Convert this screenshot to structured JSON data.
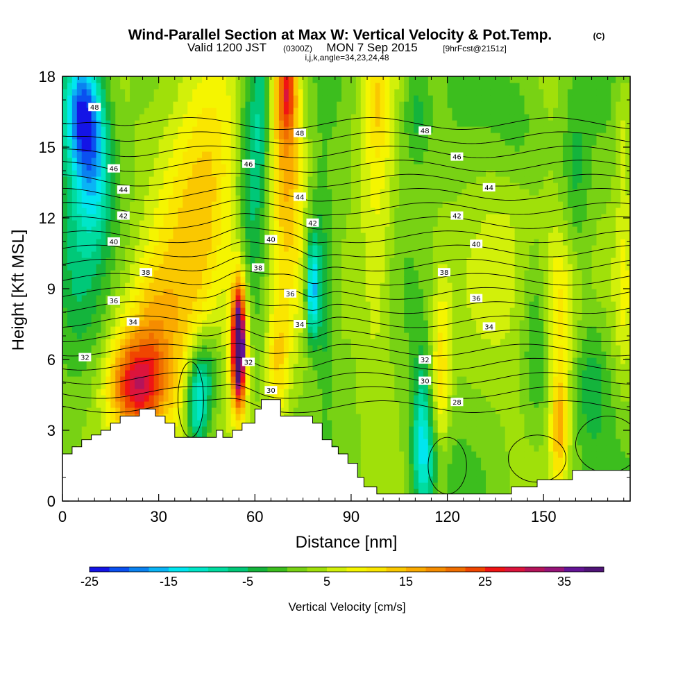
{
  "titles": {
    "main": "Wind-Parallel Section at Max W: Vertical Velocity & Pot.Temp.",
    "main_mark": "(C)",
    "valid_prefix": "Valid 1200 JST",
    "valid_utc": "(0300Z)",
    "valid_date": "MON 7 Sep 2015",
    "valid_fcst": "[9hrFcst@2151z]",
    "indices": "i,j,k,angle=34,23,24,48"
  },
  "chart_data": {
    "type": "heatmap",
    "xlabel": "Distance [nm]",
    "ylabel": "Height [Kft MSL]",
    "xlim": [
      0,
      177
    ],
    "ylim": [
      0,
      18
    ],
    "x_ticks": [
      0,
      30,
      60,
      90,
      120,
      150
    ],
    "y_ticks": [
      0,
      3,
      6,
      9,
      12,
      15,
      18
    ],
    "color_variable": "Vertical Velocity [cm/s]",
    "colorbar_range": [
      -25,
      40
    ],
    "colorbar_step": 2.5,
    "colorbar_tick_labels": [
      "-25",
      "-15",
      "-5",
      "5",
      "15",
      "25",
      "35"
    ],
    "colorbar_colors": [
      "#1414e6",
      "#0a50f0",
      "#0a82f0",
      "#0ab4f5",
      "#00e6f0",
      "#00e6c8",
      "#00dca0",
      "#00c878",
      "#14b43c",
      "#3cbe1e",
      "#78d214",
      "#a0e00a",
      "#d2f00a",
      "#f5f500",
      "#fae600",
      "#fac800",
      "#faaa00",
      "#f58c00",
      "#f06e00",
      "#f04600",
      "#f01414",
      "#dc143c",
      "#b4145a",
      "#961478",
      "#641496",
      "#501478"
    ],
    "terrain": [
      [
        0,
        2.0
      ],
      [
        3,
        2.0
      ],
      [
        3,
        2.3
      ],
      [
        6,
        2.3
      ],
      [
        6,
        2.6
      ],
      [
        9,
        2.6
      ],
      [
        9,
        2.8
      ],
      [
        12,
        2.8
      ],
      [
        12,
        3.0
      ],
      [
        15,
        3.0
      ],
      [
        15,
        3.3
      ],
      [
        18,
        3.3
      ],
      [
        18,
        3.6
      ],
      [
        24,
        3.6
      ],
      [
        24,
        3.9
      ],
      [
        29,
        3.9
      ],
      [
        29,
        3.6
      ],
      [
        32,
        3.6
      ],
      [
        32,
        3.3
      ],
      [
        35,
        3.3
      ],
      [
        35,
        2.7
      ],
      [
        48,
        2.7
      ],
      [
        48,
        3.0
      ],
      [
        50,
        3.0
      ],
      [
        50,
        2.7
      ],
      [
        53,
        2.7
      ],
      [
        53,
        3.0
      ],
      [
        56,
        3.0
      ],
      [
        56,
        3.3
      ],
      [
        60,
        3.3
      ],
      [
        60,
        3.9
      ],
      [
        62,
        3.9
      ],
      [
        62,
        4.3
      ],
      [
        68,
        4.3
      ],
      [
        68,
        3.6
      ],
      [
        78,
        3.6
      ],
      [
        78,
        3.3
      ],
      [
        81,
        3.3
      ],
      [
        81,
        2.6
      ],
      [
        84,
        2.6
      ],
      [
        84,
        2.3
      ],
      [
        86,
        2.3
      ],
      [
        86,
        2.0
      ],
      [
        89,
        2.0
      ],
      [
        89,
        1.6
      ],
      [
        92,
        1.6
      ],
      [
        92,
        1.0
      ],
      [
        94,
        1.0
      ],
      [
        94,
        0.6
      ],
      [
        98,
        0.6
      ],
      [
        98,
        0.3
      ],
      [
        140,
        0.3
      ],
      [
        140,
        0.6
      ],
      [
        148,
        0.6
      ],
      [
        148,
        0.9
      ],
      [
        159,
        0.9
      ],
      [
        159,
        1.3
      ],
      [
        177,
        1.3
      ]
    ],
    "theta_levels": [
      28,
      29,
      30,
      31,
      32,
      33,
      34,
      35,
      36,
      37,
      38,
      39,
      40,
      41,
      42,
      43,
      44,
      45,
      46,
      47,
      48
    ],
    "contour_labels": [
      {
        "text": "48",
        "x": 10,
        "y": 16.7
      },
      {
        "text": "48",
        "x": 74,
        "y": 15.6
      },
      {
        "text": "48",
        "x": 113,
        "y": 15.7
      },
      {
        "text": "46",
        "x": 16,
        "y": 14.1
      },
      {
        "text": "46",
        "x": 58,
        "y": 14.3
      },
      {
        "text": "46",
        "x": 123,
        "y": 14.6
      },
      {
        "text": "44",
        "x": 19,
        "y": 13.2
      },
      {
        "text": "44",
        "x": 74,
        "y": 12.9
      },
      {
        "text": "44",
        "x": 133,
        "y": 13.3
      },
      {
        "text": "42",
        "x": 19,
        "y": 12.1
      },
      {
        "text": "42",
        "x": 78,
        "y": 11.8
      },
      {
        "text": "42",
        "x": 123,
        "y": 12.1
      },
      {
        "text": "40",
        "x": 16,
        "y": 11.0
      },
      {
        "text": "40",
        "x": 65,
        "y": 11.1
      },
      {
        "text": "40",
        "x": 129,
        "y": 10.9
      },
      {
        "text": "38",
        "x": 26,
        "y": 9.7
      },
      {
        "text": "38",
        "x": 61,
        "y": 9.9
      },
      {
        "text": "38",
        "x": 119,
        "y": 9.7
      },
      {
        "text": "36",
        "x": 16,
        "y": 8.5
      },
      {
        "text": "36",
        "x": 71,
        "y": 8.8
      },
      {
        "text": "36",
        "x": 129,
        "y": 8.6
      },
      {
        "text": "34",
        "x": 22,
        "y": 7.6
      },
      {
        "text": "34",
        "x": 74,
        "y": 7.5
      },
      {
        "text": "34",
        "x": 133,
        "y": 7.4
      },
      {
        "text": "32",
        "x": 7,
        "y": 6.1
      },
      {
        "text": "32",
        "x": 58,
        "y": 5.9
      },
      {
        "text": "32",
        "x": 113,
        "y": 6.0
      },
      {
        "text": "30",
        "x": 65,
        "y": 4.7
      },
      {
        "text": "30",
        "x": 113,
        "y": 5.1
      },
      {
        "text": "28",
        "x": 123,
        "y": 4.2
      }
    ],
    "velocity_features": [
      {
        "x": 6,
        "y": 16.6,
        "w": -22,
        "sx": 4,
        "sy": 1.8
      },
      {
        "x": 10,
        "y": 14.2,
        "w": -14,
        "sx": 4,
        "sy": 2.2
      },
      {
        "x": 4,
        "y": 10.5,
        "w": -6,
        "sx": 5,
        "sy": 3
      },
      {
        "x": 23,
        "y": 4.8,
        "w": 18,
        "sx": 6,
        "sy": 1.3
      },
      {
        "x": 28,
        "y": 6.5,
        "w": 9,
        "sx": 5,
        "sy": 2.5
      },
      {
        "x": 20,
        "y": 6.0,
        "w": 7,
        "sx": 5,
        "sy": 2.2
      },
      {
        "x": 38,
        "y": 10.0,
        "w": 9,
        "sx": 8,
        "sy": 7
      },
      {
        "x": 47,
        "y": 13.5,
        "w": 7,
        "sx": 6,
        "sy": 4
      },
      {
        "x": 42,
        "y": 4.2,
        "w": -16,
        "sx": 2.5,
        "sy": 1.5
      },
      {
        "x": 45,
        "y": 5.5,
        "w": -8,
        "sx": 3,
        "sy": 1.5
      },
      {
        "x": 55,
        "y": 6.5,
        "w": 40,
        "sx": 1.3,
        "sy": 1.6
      },
      {
        "x": 55,
        "y": 7.2,
        "w": 12,
        "sx": 2.5,
        "sy": 2.5
      },
      {
        "x": 58,
        "y": 14.5,
        "w": -8,
        "sx": 2.5,
        "sy": 4
      },
      {
        "x": 62,
        "y": 16.5,
        "w": -10,
        "sx": 2,
        "sy": 3
      },
      {
        "x": 67,
        "y": 6.0,
        "w": 10,
        "sx": 2.5,
        "sy": 1.8
      },
      {
        "x": 70,
        "y": 14.0,
        "w": 14,
        "sx": 4,
        "sy": 4.5
      },
      {
        "x": 70,
        "y": 17.5,
        "w": 16,
        "sx": 2,
        "sy": 1.5
      },
      {
        "x": 78,
        "y": 8.8,
        "w": -18,
        "sx": 1.4,
        "sy": 1.5
      },
      {
        "x": 80,
        "y": 11.0,
        "w": -6,
        "sx": 3,
        "sy": 2
      },
      {
        "x": 82,
        "y": 7.5,
        "w": -6,
        "sx": 2,
        "sy": 2
      },
      {
        "x": 98,
        "y": 12.0,
        "w": 7,
        "sx": 4,
        "sy": 6
      },
      {
        "x": 112,
        "y": 3.0,
        "w": -10,
        "sx": 2,
        "sy": 2.5
      },
      {
        "x": 114,
        "y": 1.8,
        "w": -8,
        "sx": 4,
        "sy": 1.5
      },
      {
        "x": 118,
        "y": 5.0,
        "w": 10,
        "sx": 2,
        "sy": 3
      },
      {
        "x": 110,
        "y": 16.5,
        "w": -6,
        "sx": 3,
        "sy": 1.5
      },
      {
        "x": 98,
        "y": 17.0,
        "w": 5,
        "sx": 3,
        "sy": 1.5
      },
      {
        "x": 140,
        "y": 10.0,
        "w": 5,
        "sx": 8,
        "sy": 4
      },
      {
        "x": 142,
        "y": 16.0,
        "w": -5,
        "sx": 6,
        "sy": 2
      },
      {
        "x": 148,
        "y": 6.5,
        "w": -6,
        "sx": 3,
        "sy": 2.5
      },
      {
        "x": 155,
        "y": 3.2,
        "w": 13,
        "sx": 2,
        "sy": 1.8
      },
      {
        "x": 155,
        "y": 8.5,
        "w": 10,
        "sx": 4,
        "sy": 2.5
      },
      {
        "x": 160,
        "y": 14.0,
        "w": -5,
        "sx": 3,
        "sy": 3
      },
      {
        "x": 165,
        "y": 5.0,
        "w": -6,
        "sx": 4,
        "sy": 2
      },
      {
        "x": 175,
        "y": 16.0,
        "w": 5,
        "sx": 2,
        "sy": 2
      },
      {
        "x": 175,
        "y": 9.0,
        "w": 5,
        "sx": 2,
        "sy": 3
      }
    ]
  }
}
